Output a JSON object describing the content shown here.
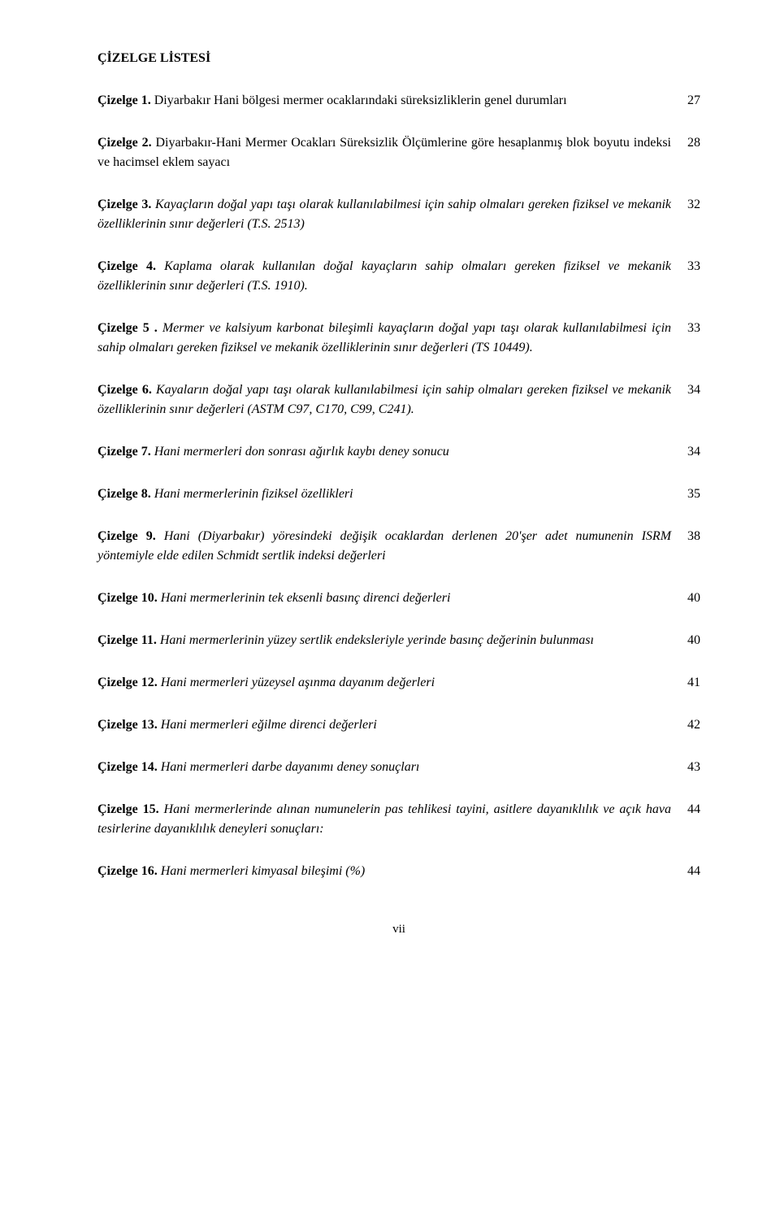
{
  "document": {
    "list_title": "ÇİZELGE LİSTESİ",
    "footer_page": "vii"
  },
  "entries": [
    {
      "label": "Çizelge  1.",
      "italic": false,
      "text_before": " Diyarbakır Hani bölgesi mermer ocaklarındaki süreksizliklerin genel durumları",
      "text_italic": "",
      "page": "27"
    },
    {
      "label": "Çizelge 2.",
      "italic": false,
      "text_before": " Diyarbakır-Hani Mermer Ocakları Süreksizlik Ölçümlerine göre hesaplanmış blok boyutu indeksi ve hacimsel eklem sayacı",
      "text_italic": "",
      "page": "28"
    },
    {
      "label": "Çizelge 3.",
      "italic": true,
      "text_before": "  ",
      "text_italic": "Kayaçların doğal yapı taşı olarak kullanılabilmesi için sahip olmaları gereken fiziksel ve mekanik özelliklerinin sınır değerleri (T.S. 2513)",
      "page": "32"
    },
    {
      "label": "Çizelge 4.",
      "italic": true,
      "text_before": " ",
      "text_italic": "Kaplama olarak kullanılan doğal kayaçların sahip olmaları gereken fiziksel ve mekanik özelliklerinin sınır değerleri (T.S. 1910).",
      "page": "33"
    },
    {
      "label": "Çizelge 5 .",
      "italic": true,
      "text_before": " ",
      "text_italic": "Mermer ve kalsiyum karbonat bileşimli kayaçların doğal yapı taşı olarak kullanılabilmesi için sahip olmaları gereken fiziksel ve mekanik özelliklerinin sınır değerleri (TS 10449).",
      "page": "33"
    },
    {
      "label": "Çizelge 6.",
      "italic": true,
      "text_before": " ",
      "text_italic": "Kayaların doğal yapı taşı olarak kullanılabilmesi için sahip olmaları gereken fiziksel ve mekanik özelliklerinin sınır değerleri (ASTM C97, C170, C99, C241).",
      "page": "34"
    },
    {
      "label": "Çizelge 7.",
      "italic": true,
      "text_before": " ",
      "text_italic": "Hani mermerleri don sonrası ağırlık kaybı deney sonucu",
      "page": "34"
    },
    {
      "label": "Çizelge 8.",
      "italic": true,
      "text_before": " ",
      "text_italic": "Hani mermerlerinin fiziksel özellikleri",
      "page": "35"
    },
    {
      "label": "Çizelge 9.",
      "italic": true,
      "text_before": " ",
      "text_italic": "Hani (Diyarbakır) yöresindeki değişik ocaklardan derlenen 20'şer adet numunenin ISRM yöntemiyle elde edilen Schmidt sertlik indeksi değerleri",
      "page": "38"
    },
    {
      "label": "Çizelge 10.",
      "italic": true,
      "text_before": " ",
      "text_italic": "Hani mermerlerinin tek eksenli basınç direnci değerleri",
      "page": "40"
    },
    {
      "label": "Çizelge 11.",
      "italic": true,
      "text_before": " ",
      "text_italic": "Hani mermerlerinin yüzey sertlik endeksleriyle yerinde basınç değerinin bulunması",
      "page": "40"
    },
    {
      "label": "Çizelge 12.",
      "italic": true,
      "text_before": " ",
      "text_italic": "Hani mermerleri yüzeysel aşınma dayanım değerleri",
      "page": "41"
    },
    {
      "label": "Çizelge 13.",
      "italic": true,
      "text_before": " ",
      "text_italic": "Hani mermerleri eğilme direnci değerleri",
      "page": "42"
    },
    {
      "label": "Çizelge 14.",
      "italic": true,
      "text_before": " ",
      "text_italic": "Hani mermerleri darbe dayanımı deney sonuçları",
      "page": "43"
    },
    {
      "label": "Çizelge 15.",
      "italic": true,
      "text_before": " ",
      "text_italic": "Hani mermerlerinde alınan numunelerin pas tehlikesi tayini, asitlere dayanıklılık ve açık hava tesirlerine dayanıklılık deneyleri sonuçları:",
      "page": "44"
    },
    {
      "label": "Çizelge 16.",
      "italic": true,
      "text_before": " ",
      "text_italic": "Hani mermerleri kimyasal bileşimi (%)",
      "page": "44"
    }
  ]
}
